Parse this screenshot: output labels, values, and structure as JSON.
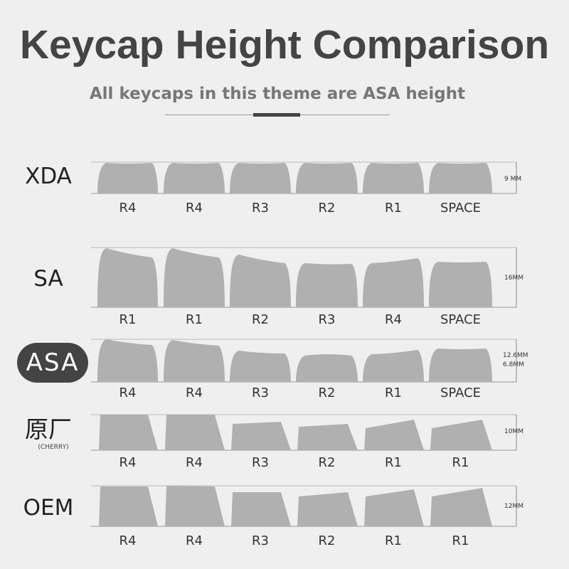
{
  "title": "Keycap Height Comparison",
  "subtitle": "All keycaps in this theme are ASA height",
  "colors": {
    "keycap": "#b0b0b0",
    "title": "#444444",
    "pill": "#444444",
    "background": "#efefef"
  },
  "profiles": [
    {
      "name": "XDA",
      "measure": [
        "9 MM"
      ],
      "keys": [
        "R4",
        "R4",
        "R3",
        "R2",
        "R1",
        "SPACE"
      ]
    },
    {
      "name": "SA",
      "measure": [
        "16MM"
      ],
      "keys": [
        "R1",
        "R1",
        "R2",
        "R3",
        "R4",
        "SPACE"
      ]
    },
    {
      "name": "ASA",
      "measure": [
        "12.6MM",
        "6.8MM"
      ],
      "keys": [
        "R4",
        "R4",
        "R3",
        "R2",
        "R1",
        "SPACE"
      ],
      "highlighted": true
    },
    {
      "name": "原厂",
      "sub": "(CHERRY)",
      "measure": [
        "10MM"
      ],
      "keys": [
        "R4",
        "R4",
        "R3",
        "R2",
        "R1",
        "R1"
      ]
    },
    {
      "name": "OEM",
      "measure": [
        "12MM"
      ],
      "keys": [
        "R4",
        "R4",
        "R3",
        "R2",
        "R1",
        "R1"
      ]
    }
  ]
}
